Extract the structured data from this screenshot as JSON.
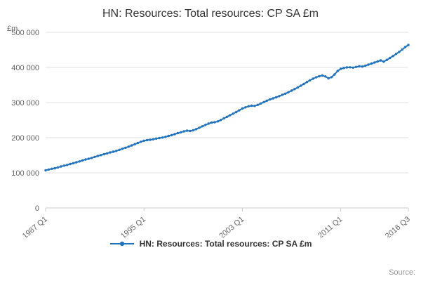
{
  "title": "HN: Resources: Total resources: CP SA £m",
  "y_axis_unit": "£m",
  "legend": {
    "label": "HN: Resources: Total resources: CP SA £m"
  },
  "source_label": "Source:",
  "colors": {
    "line": "#2073bc",
    "grid": "#e0e0e0",
    "axis": "#cccccc",
    "axis_text": "#666666",
    "title_text": "#333333"
  },
  "chart_data": {
    "type": "line",
    "title": "HN: Resources: Total resources: CP SA £m",
    "xlabel": "",
    "ylabel": "£m",
    "ylim": [
      0,
      500000
    ],
    "grid": true,
    "legend_position": "bottom",
    "x_start": "1987 Q1",
    "x_end": "2016 Q3",
    "frequency": "quarterly",
    "x_ticks": [
      {
        "index": 0,
        "label": "1987 Q1"
      },
      {
        "index": 32,
        "label": "1995 Q1"
      },
      {
        "index": 64,
        "label": "2003 Q1"
      },
      {
        "index": 96,
        "label": "2011 Q1"
      },
      {
        "index": 118,
        "label": "2016 Q3"
      }
    ],
    "y_ticks": [
      {
        "value": 0,
        "label": "0"
      },
      {
        "value": 100000,
        "label": "100 000"
      },
      {
        "value": 200000,
        "label": "200 000"
      },
      {
        "value": 300000,
        "label": "300 000"
      },
      {
        "value": 400000,
        "label": "400 000"
      },
      {
        "value": 500000,
        "label": "500 000"
      }
    ],
    "series": [
      {
        "name": "HN: Resources: Total resources: CP SA £m",
        "values": [
          107000,
          109500,
          111500,
          113000,
          115500,
          118000,
          120500,
          122500,
          125000,
          127500,
          130000,
          132500,
          135500,
          138000,
          140000,
          142500,
          145500,
          148000,
          150500,
          153000,
          155500,
          158000,
          160000,
          162500,
          165500,
          168500,
          171500,
          174500,
          178000,
          181500,
          185000,
          188500,
          191500,
          193000,
          194000,
          195500,
          197500,
          199000,
          200500,
          202500,
          205000,
          207500,
          210000,
          213000,
          215500,
          218000,
          220000,
          219000,
          221000,
          224500,
          228500,
          232500,
          236500,
          240000,
          243000,
          244000,
          246500,
          250500,
          255000,
          259500,
          264000,
          268500,
          273000,
          278000,
          283000,
          286500,
          289500,
          291000,
          290500,
          293500,
          297500,
          301500,
          305500,
          309000,
          312000,
          315000,
          318500,
          322000,
          325500,
          329500,
          334000,
          338500,
          343000,
          348000,
          353000,
          358500,
          363500,
          368000,
          372000,
          375000,
          377000,
          374500,
          369000,
          372500,
          380000,
          390000,
          396000,
          398500,
          400000,
          400500,
          399500,
          401500,
          403500,
          402500,
          405000,
          408000,
          411000,
          414000,
          417000,
          420000,
          416500,
          421500,
          427000,
          432500,
          438500,
          444500,
          451000,
          458000,
          464000
        ]
      }
    ]
  }
}
